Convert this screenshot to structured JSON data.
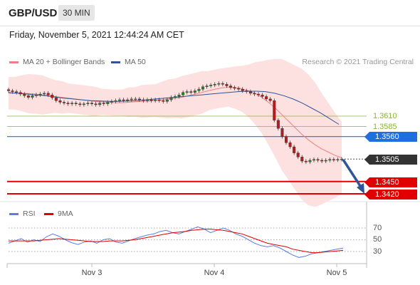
{
  "header": {
    "symbol": "GBP/USD",
    "timeframe": "30 MIN"
  },
  "datetime": "Friday, November 5, 2021 12:44:24 AM CET",
  "legend": {
    "ma20": {
      "label": "MA 20 + Bollinger Bands",
      "color": "#f08080"
    },
    "ma50": {
      "label": "MA 50",
      "color": "#2f5597"
    },
    "credit": "Research © 2021 Trading Central"
  },
  "rsi_legend": {
    "rsi": {
      "label": "RSI",
      "color": "#5b7fdc"
    },
    "ma9": {
      "label": "9MA",
      "color": "#e00000"
    }
  },
  "levels": [
    {
      "value": "1.3610",
      "style": "resistance-green",
      "color": "#8ab43a"
    },
    {
      "value": "1.3585",
      "style": "resistance-green",
      "color": "#8ab43a"
    },
    {
      "value": "1.3560",
      "style": "pivot",
      "color": "#1f6fe0"
    },
    {
      "value": "1.3505",
      "style": "last",
      "color": "#333333"
    },
    {
      "value": "1.3450",
      "style": "support",
      "color": "#e00000"
    },
    {
      "value": "1.3420",
      "style": "support",
      "color": "#e00000"
    }
  ],
  "rsi_axis": [
    "70",
    "50",
    "30"
  ],
  "x_labels": [
    "Nov 3",
    "Nov 4",
    "Nov 5"
  ],
  "chart_data": [
    {
      "type": "candlestick",
      "title": "GBP/USD 30 MIN",
      "ylim": [
        1.34,
        1.37
      ],
      "series": [
        {
          "name": "GBP/USD",
          "values_close": [
            1.3672,
            1.367,
            1.3668,
            1.3664,
            1.366,
            1.3656,
            1.366,
            1.3662,
            1.3664,
            1.3666,
            1.3662,
            1.3655,
            1.3648,
            1.3644,
            1.3642,
            1.364,
            1.3642,
            1.364,
            1.3638,
            1.364,
            1.3642,
            1.364,
            1.3638,
            1.3642,
            1.364,
            1.3644,
            1.3646,
            1.3648,
            1.365,
            1.3649,
            1.365,
            1.3652,
            1.3652,
            1.365,
            1.3648,
            1.365,
            1.3648,
            1.365,
            1.3648,
            1.3646,
            1.365,
            1.3656,
            1.3658,
            1.3662,
            1.3668,
            1.367,
            1.3668,
            1.3672,
            1.3676,
            1.3682,
            1.3684,
            1.3686,
            1.3688,
            1.369,
            1.3688,
            1.3684,
            1.368,
            1.3678,
            1.3676,
            1.3672,
            1.367,
            1.3666,
            1.3664,
            1.3662,
            1.3658,
            1.3652,
            1.3648,
            1.36,
            1.358,
            1.356,
            1.3545,
            1.3535,
            1.352,
            1.351,
            1.35,
            1.3498,
            1.3502,
            1.3504,
            1.3502,
            1.35,
            1.3502,
            1.3504,
            1.3503,
            1.3504,
            1.3505
          ]
        },
        {
          "name": "MA 20",
          "values": [
            1.3666,
            1.3666,
            1.3666,
            1.3665,
            1.3664,
            1.3662,
            1.366,
            1.3658,
            1.3656,
            1.3654,
            1.3652,
            1.365,
            1.3648,
            1.3646,
            1.3645,
            1.3644,
            1.3643,
            1.3643,
            1.3644,
            1.3645,
            1.3646,
            1.3647,
            1.3648,
            1.365,
            1.3652,
            1.3654,
            1.3656,
            1.366,
            1.3664,
            1.3668,
            1.3672,
            1.3676,
            1.3679,
            1.3681,
            1.368,
            1.3677,
            1.3672,
            1.3666,
            1.3656,
            1.3644,
            1.363,
            1.3614,
            1.3598,
            1.3582,
            1.3566,
            1.3552,
            1.354,
            1.353,
            1.3522,
            1.3514,
            1.3508
          ]
        },
        {
          "name": "MA 50",
          "values": [
            1.3668,
            1.3666,
            1.3664,
            1.3662,
            1.366,
            1.3657,
            1.3654,
            1.3652,
            1.365,
            1.3648,
            1.3647,
            1.3646,
            1.3646,
            1.3647,
            1.3648,
            1.365,
            1.3652,
            1.3654,
            1.3656,
            1.3658,
            1.366,
            1.3662,
            1.3664,
            1.3666,
            1.3668,
            1.367,
            1.3671,
            1.3671,
            1.367,
            1.3666,
            1.366,
            1.3652,
            1.3642,
            1.363,
            1.3618,
            1.3604,
            1.359
          ]
        }
      ],
      "levels": [
        1.361,
        1.3585,
        1.356,
        1.3505,
        1.345,
        1.342
      ],
      "forecast": "down arrow toward 1.3420"
    },
    {
      "type": "line",
      "title": "RSI",
      "ylim": [
        10,
        90
      ],
      "gridlines": [
        70,
        50,
        30
      ],
      "series": [
        {
          "name": "RSI",
          "values": [
            44,
            48,
            52,
            46,
            50,
            47,
            55,
            60,
            56,
            50,
            45,
            42,
            46,
            48,
            44,
            50,
            52,
            46,
            44,
            48,
            52,
            55,
            58,
            60,
            64,
            66,
            62,
            60,
            64,
            68,
            72,
            68,
            62,
            66,
            70,
            66,
            60,
            56,
            50,
            44,
            40,
            38,
            40,
            36,
            30,
            24,
            20,
            22,
            26,
            28,
            30,
            32,
            34,
            36
          ]
        },
        {
          "name": "9MA",
          "values": [
            48,
            48,
            48,
            48,
            48,
            49,
            50,
            51,
            52,
            51,
            50,
            49,
            48,
            47,
            47,
            47,
            48,
            48,
            48,
            49,
            50,
            52,
            54,
            56,
            58,
            60,
            62,
            63,
            64,
            66,
            67,
            68,
            68,
            67,
            66,
            64,
            62,
            60,
            56,
            52,
            48,
            44,
            42,
            40,
            38,
            34,
            32,
            30,
            28,
            28,
            29,
            30,
            31,
            32
          ]
        }
      ]
    }
  ]
}
